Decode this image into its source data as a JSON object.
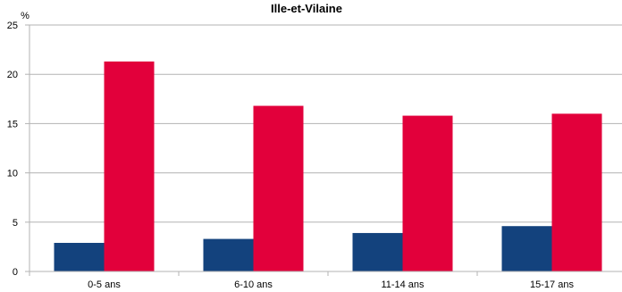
{
  "chart_data": {
    "type": "bar",
    "title": "Ille-et-Vilaine",
    "ylabel": "%",
    "xlabel": "",
    "ylim": [
      0,
      25
    ],
    "yticks": [
      0,
      5,
      10,
      15,
      20,
      25
    ],
    "grid": true,
    "legend": "none",
    "categories": [
      "0-5 ans",
      "6-10 ans",
      "11-14 ans",
      "15-17 ans"
    ],
    "series": [
      {
        "color": "#13427d",
        "values": [
          2.9,
          3.3,
          3.9,
          4.6
        ]
      },
      {
        "color": "#e2003b",
        "values": [
          21.3,
          16.8,
          15.8,
          16.0
        ]
      }
    ]
  }
}
